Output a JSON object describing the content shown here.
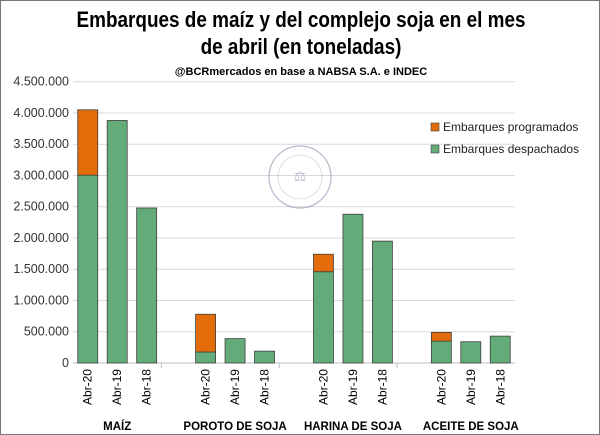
{
  "chart_data": {
    "type": "bar",
    "stacked": true,
    "title_line1": "Embarques de maíz y del complejo soja en el mes",
    "title_line2": "de abril (en toneladas)",
    "subtitle": "@BCRmercados en base a NABSA S.A. e INDEC",
    "groups": [
      "MAÍZ",
      "POROTO DE SOJA",
      "HARINA DE SOJA",
      "ACEITE DE SOJA"
    ],
    "categories": [
      "Abr-20",
      "Abr-19",
      "Abr-18"
    ],
    "series": [
      {
        "name": "Embarques despachados",
        "color": "#63AB79",
        "values": [
          [
            3005000,
            3880000,
            2480000
          ],
          [
            176000,
            390000,
            190000
          ],
          [
            1460000,
            2380000,
            1950000
          ],
          [
            350000,
            340000,
            430000
          ]
        ]
      },
      {
        "name": "Embarques programados",
        "color": "#E36C0A",
        "values": [
          [
            1045000,
            0,
            0
          ],
          [
            604000,
            0,
            0
          ],
          [
            280000,
            0,
            0
          ],
          [
            140000,
            0,
            0
          ]
        ]
      }
    ],
    "legend_order": [
      "Embarques programados",
      "Embarques despachados"
    ],
    "legend_position": "top-right",
    "yticks": [
      "0",
      "500.000",
      "1.000.000",
      "1.500.000",
      "2.000.000",
      "2.500.000",
      "3.000.000",
      "3.500.000",
      "4.000.000",
      "4.500.000"
    ],
    "ylim": [
      0,
      4500000
    ],
    "grid": true,
    "watermark": "BOLSA DE COMERCIO DE ROSARIO"
  }
}
